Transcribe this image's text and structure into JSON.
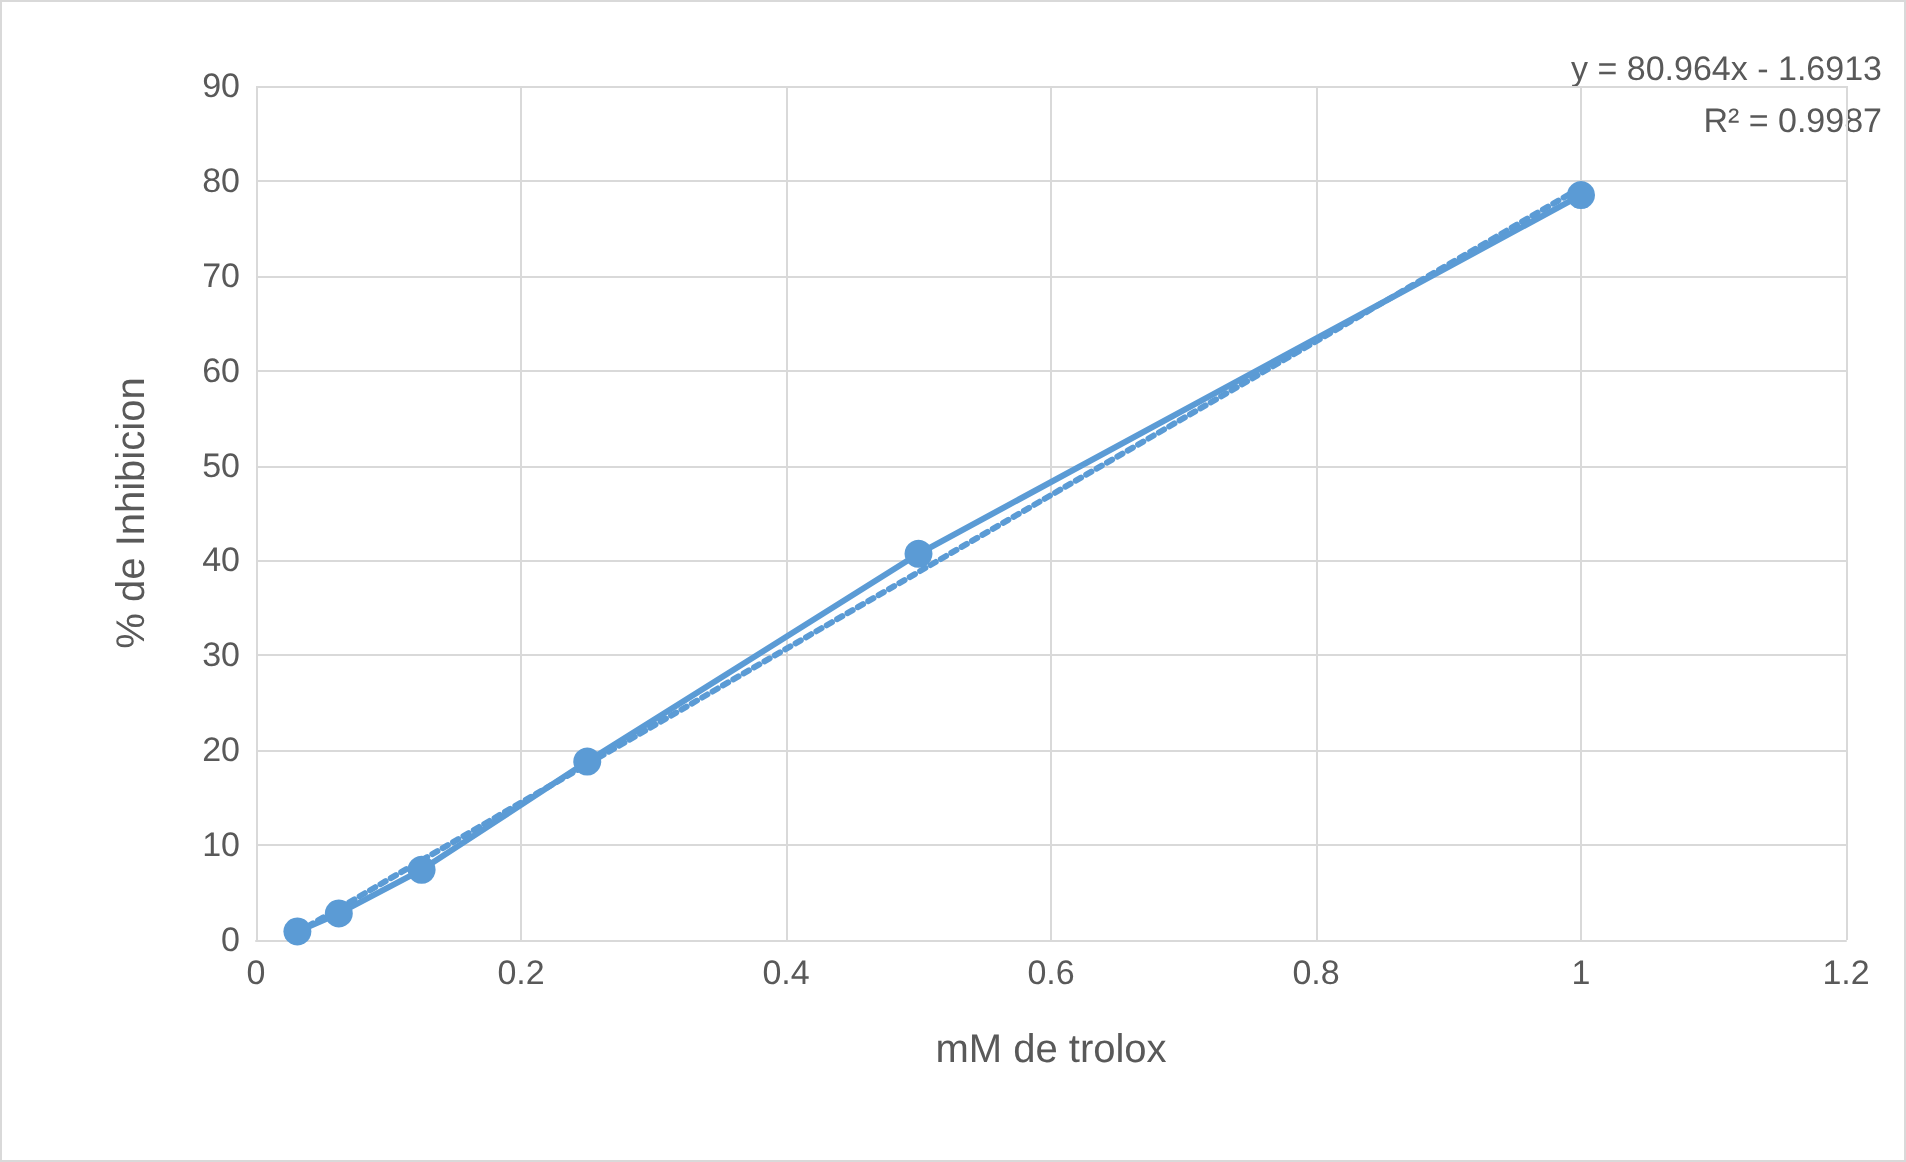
{
  "chart_data": {
    "type": "line",
    "xlabel": "mM de trolox",
    "ylabel": "% de Inhibicion",
    "xlim": [
      0,
      1.2
    ],
    "xticks": [
      0,
      0.2,
      0.4,
      0.6,
      0.8,
      1,
      1.2
    ],
    "ylim": [
      0,
      90
    ],
    "yticks": [
      0,
      10,
      20,
      30,
      40,
      50,
      60,
      70,
      80,
      90
    ],
    "grid": true,
    "marker": "circle",
    "line_style": "solid",
    "series": [
      {
        "color": "#5b9bd5",
        "x": [
          0.03125,
          0.0625,
          0.125,
          0.25,
          0.5,
          1
        ],
        "values": [
          0.9,
          2.8,
          7.4,
          18.8,
          40.7,
          78.5
        ]
      },
      {
        "type": "line",
        "color": "#5b9bd5",
        "x": [
          0.03125,
          1
        ],
        "values": [
          0.8,
          79.3
        ],
        "line_style": "dotted",
        "marker": "none"
      }
    ],
    "annotations": [
      "y = 80.964x - 1.6913",
      "R² = 0.9987"
    ]
  }
}
